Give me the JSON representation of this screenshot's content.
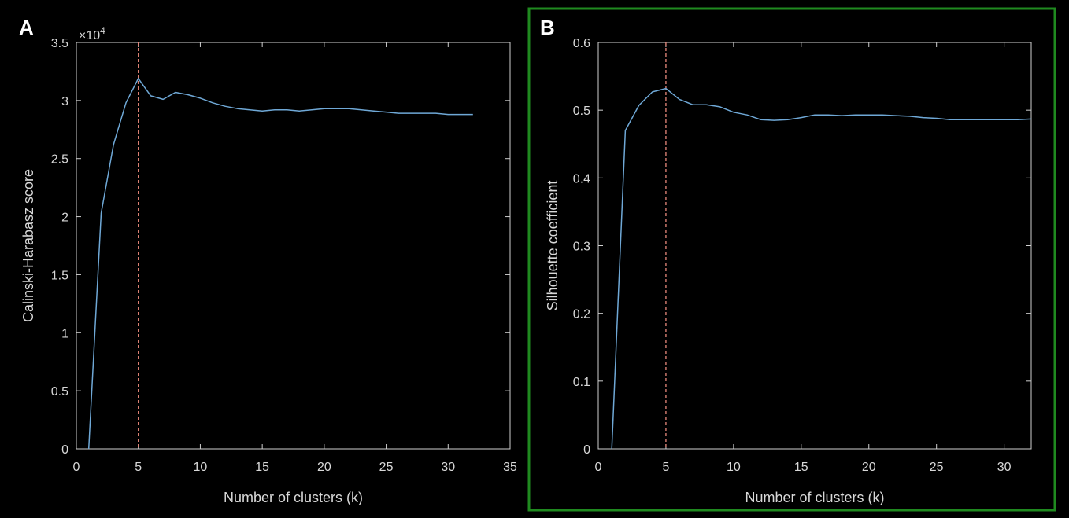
{
  "colors": {
    "background": "#000000",
    "axes": "#d0d0d0",
    "series": "#6fa8d6",
    "reference_line": "#e8887a",
    "highlight_box": "#1f8a1f"
  },
  "chart_data": [
    {
      "panel": "A",
      "type": "line",
      "title": "",
      "xlabel": "Number of clusters (k)",
      "ylabel": "Calinski-Harabasz score",
      "y_multiplier_label": "×10",
      "y_multiplier_exponent": "4",
      "xlim": [
        0,
        35
      ],
      "ylim": [
        0,
        3.5
      ],
      "xticks": [
        0,
        5,
        10,
        15,
        20,
        25,
        30,
        35
      ],
      "yticks": [
        0,
        0.5,
        1,
        1.5,
        2,
        2.5,
        3,
        3.5
      ],
      "grid": false,
      "reference_x": 5,
      "highlighted": false,
      "series": [
        {
          "x": [
            1,
            2,
            3,
            4,
            5,
            6,
            7,
            8,
            9,
            10,
            11,
            12,
            13,
            14,
            15,
            16,
            17,
            18,
            19,
            20,
            21,
            22,
            23,
            24,
            25,
            26,
            27,
            28,
            29,
            30,
            31,
            32
          ],
          "y": [
            0,
            2.03,
            2.62,
            2.98,
            3.19,
            3.04,
            3.01,
            3.07,
            3.05,
            3.02,
            2.98,
            2.95,
            2.93,
            2.92,
            2.91,
            2.92,
            2.92,
            2.91,
            2.92,
            2.93,
            2.93,
            2.93,
            2.92,
            2.91,
            2.9,
            2.89,
            2.89,
            2.89,
            2.89,
            2.88,
            2.88,
            2.88
          ]
        }
      ]
    },
    {
      "panel": "B",
      "type": "line",
      "title": "",
      "xlabel": "Number of clusters (k)",
      "ylabel": "Silhouette coefficient",
      "xlim": [
        0,
        32
      ],
      "ylim": [
        0,
        0.6
      ],
      "xticks": [
        0,
        5,
        10,
        15,
        20,
        25,
        30
      ],
      "yticks": [
        0,
        0.1,
        0.2,
        0.3,
        0.4,
        0.5,
        0.6
      ],
      "grid": false,
      "reference_x": 5,
      "highlighted": true,
      "series": [
        {
          "x": [
            1,
            2,
            3,
            4,
            5,
            6,
            7,
            8,
            9,
            10,
            11,
            12,
            13,
            14,
            15,
            16,
            17,
            18,
            19,
            20,
            21,
            22,
            23,
            24,
            25,
            26,
            27,
            28,
            29,
            30,
            31,
            32
          ],
          "y": [
            0,
            0.47,
            0.507,
            0.527,
            0.532,
            0.516,
            0.508,
            0.508,
            0.505,
            0.497,
            0.493,
            0.486,
            0.485,
            0.486,
            0.489,
            0.493,
            0.493,
            0.492,
            0.493,
            0.493,
            0.493,
            0.492,
            0.491,
            0.489,
            0.488,
            0.486,
            0.486,
            0.486,
            0.486,
            0.486,
            0.486,
            0.487
          ]
        }
      ]
    }
  ]
}
